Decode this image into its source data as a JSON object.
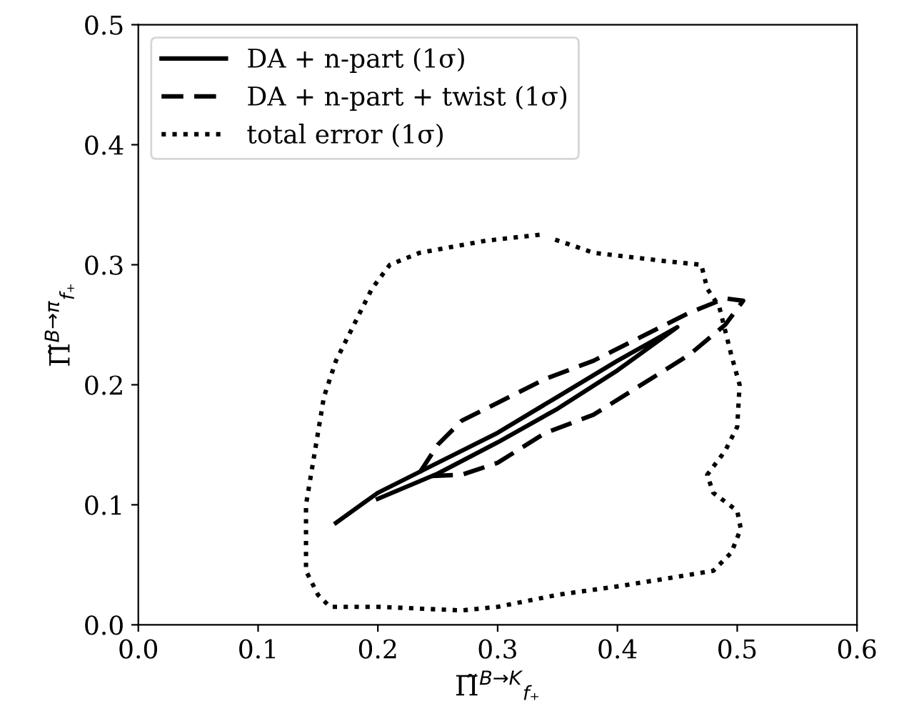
{
  "chart_data": {
    "type": "line",
    "xlabel": "Π̃$^{B→K}$$_{f₊}$",
    "ylabel": "Π̃$^{B→π}$$_{f₊}$",
    "xlim": [
      0.0,
      0.6
    ],
    "ylim": [
      0.0,
      0.5
    ],
    "xticks": [
      {
        "value": 0,
        "label": "0.0"
      },
      0.1,
      0.2,
      0.3,
      0.4,
      0.5,
      0.6
    ],
    "yticks": [
      {
        "value": 0,
        "label": "0.0"
      },
      0.1,
      0.2,
      0.3,
      0.4,
      0.5
    ],
    "legend": "top left",
    "grid": false,
    "marker": "none",
    "series": [
      {
        "name": "DA + n-part (1σ)",
        "color": "#000000",
        "line_style": "solid",
        "x": [
          0.165,
          0.2,
          0.25,
          0.3,
          0.35,
          0.4,
          0.45,
          0.4,
          0.35,
          0.3,
          0.25,
          0.2
        ],
        "values": [
          0.085,
          0.11,
          0.135,
          0.16,
          0.19,
          0.22,
          0.248,
          0.212,
          0.18,
          0.152,
          0.126,
          0.105
        ]
      },
      {
        "name": "DA + n-part + twist (1σ)",
        "color": "#000000",
        "line_style": "dashed",
        "x": [
          0.235,
          0.25,
          0.27,
          0.3,
          0.34,
          0.38,
          0.42,
          0.46,
          0.49,
          0.505,
          0.49,
          0.46,
          0.42,
          0.38,
          0.34,
          0.3,
          0.27,
          0.245
        ],
        "values": [
          0.127,
          0.15,
          0.17,
          0.185,
          0.205,
          0.22,
          0.24,
          0.26,
          0.272,
          0.27,
          0.25,
          0.225,
          0.2,
          0.175,
          0.16,
          0.135,
          0.125,
          0.124
        ]
      },
      {
        "name": "total error (1σ)",
        "color": "#000000",
        "line_style": "dotted",
        "x": [
          0.335,
          0.29,
          0.235,
          0.21,
          0.195,
          0.18,
          0.165,
          0.155,
          0.15,
          0.145,
          0.14,
          0.14,
          0.14,
          0.15,
          0.16,
          0.2,
          0.27,
          0.3,
          0.35,
          0.4,
          0.45,
          0.48,
          0.495,
          0.503,
          0.5,
          0.48,
          0.475,
          0.49,
          0.5,
          0.502,
          0.495,
          0.49,
          0.485,
          0.475,
          0.47,
          0.44,
          0.38,
          0.345
        ],
        "values": [
          0.325,
          0.32,
          0.31,
          0.3,
          0.28,
          0.25,
          0.22,
          0.19,
          0.16,
          0.13,
          0.1,
          0.07,
          0.045,
          0.025,
          0.015,
          0.015,
          0.012,
          0.015,
          0.025,
          0.032,
          0.04,
          0.045,
          0.06,
          0.08,
          0.095,
          0.11,
          0.125,
          0.145,
          0.165,
          0.2,
          0.225,
          0.245,
          0.265,
          0.28,
          0.3,
          0.303,
          0.31,
          0.322
        ]
      }
    ]
  }
}
